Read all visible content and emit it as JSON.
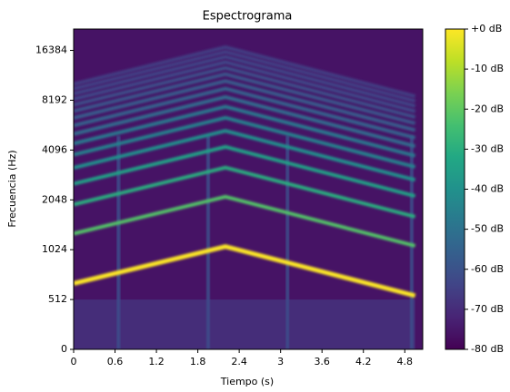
{
  "chart_data": {
    "type": "spectrogram",
    "title": "Espectrograma",
    "xlabel": "Tiempo (s)",
    "ylabel": "Frecuencia (Hz)",
    "colormap": "viridis",
    "xlim": [
      0,
      5.06
    ],
    "xticks": [
      0,
      0.6,
      1.2,
      1.8,
      2.4,
      3,
      3.6,
      4.2,
      4.8
    ],
    "yscale": "symlog",
    "linthresh": 512,
    "ylim": [
      0,
      22050
    ],
    "yticks": [
      0,
      512,
      1024,
      2048,
      4096,
      8192,
      16384
    ],
    "clim": [
      -80,
      0
    ],
    "cticks": [
      {
        "value": 0,
        "label": "+0 dB"
      },
      {
        "value": -10,
        "label": "-10 dB"
      },
      {
        "value": -20,
        "label": "-20 dB"
      },
      {
        "value": -30,
        "label": "-30 dB"
      },
      {
        "value": -40,
        "label": "-40 dB"
      },
      {
        "value": -50,
        "label": "-50 dB"
      },
      {
        "value": -60,
        "label": "-60 dB"
      },
      {
        "value": -70,
        "label": "-70 dB"
      },
      {
        "value": -80,
        "label": "-80 dB"
      }
    ],
    "noise_floor": -76,
    "low_band": {
      "ylim": [
        0,
        512
      ],
      "level": -68
    },
    "f0": {
      "x": [
        0,
        2.2,
        4.95
      ],
      "values": [
        640,
        1070,
        540
      ]
    },
    "harmonic_levels": [
      0,
      -22,
      -30,
      -34,
      -40,
      -45,
      -48,
      -52,
      -55,
      -57,
      -59,
      -61,
      -63,
      -64,
      -65,
      -66
    ],
    "transients": {
      "x": [
        0.65,
        1.95,
        3.1,
        4.9
      ],
      "level": -62,
      "top": 5000
    }
  }
}
